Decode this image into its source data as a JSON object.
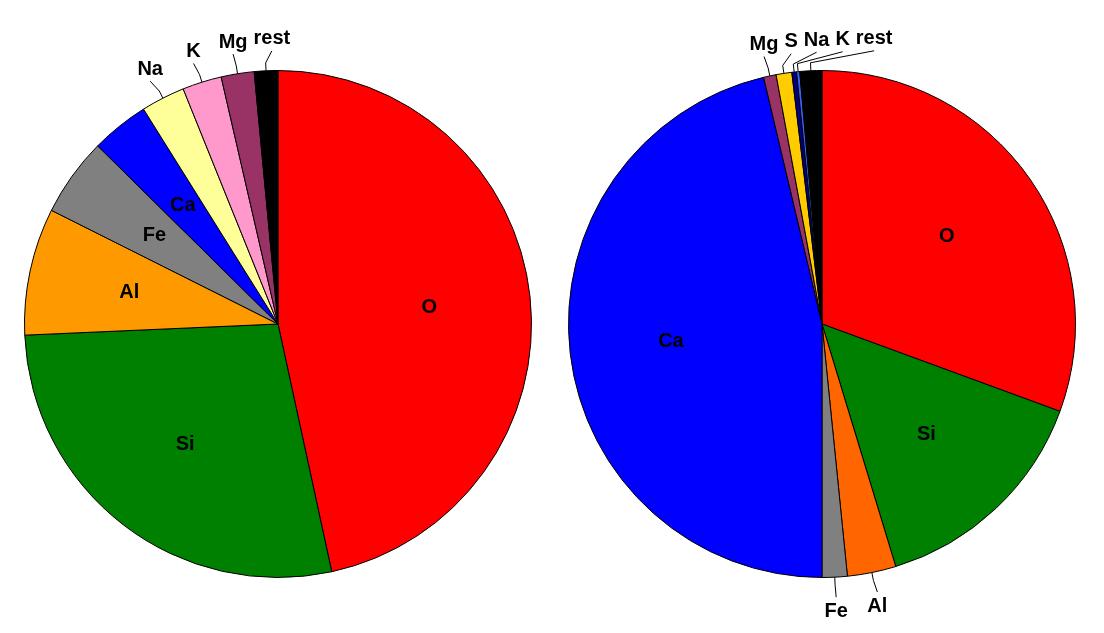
{
  "chart_data": [
    {
      "type": "pie",
      "categories": [
        "O",
        "Si",
        "Al",
        "Fe",
        "Ca",
        "Na",
        "K",
        "Mg",
        "rest"
      ],
      "values": [
        46.6,
        27.7,
        8.1,
        5.0,
        3.7,
        2.8,
        2.5,
        2.1,
        1.5
      ],
      "colors": [
        "#ff0000",
        "#008000",
        "#ff9900",
        "#808080",
        "#0000ff",
        "#ffff99",
        "#ff99cc",
        "#993366",
        "#000000"
      ],
      "legend": false
    },
    {
      "type": "pie",
      "categories": [
        "O",
        "Si",
        "Al",
        "Fe",
        "Ca",
        "Mg",
        "S",
        "Na",
        "K",
        "rest"
      ],
      "values": [
        30.6,
        14.7,
        3.1,
        1.6,
        46.3,
        0.8,
        1.0,
        0.3,
        0.2,
        1.4
      ],
      "colors": [
        "#ff0000",
        "#008000",
        "#ff6600",
        "#808080",
        "#0000ff",
        "#993366",
        "#ffcc00",
        "#000080",
        "#3366ff",
        "#000000"
      ],
      "legend": false
    }
  ]
}
